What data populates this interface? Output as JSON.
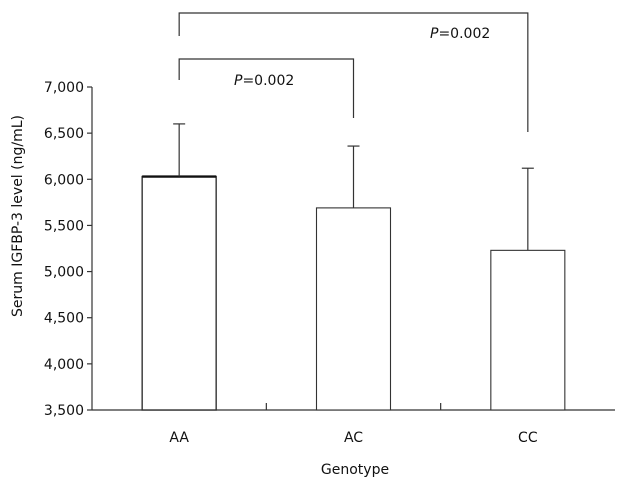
{
  "chart_data": {
    "type": "bar",
    "title": "",
    "xlabel": "Genotype",
    "ylabel": "Serum IGFBP-3 level (ng/mL)",
    "categories": [
      "AA",
      "AC",
      "CC"
    ],
    "values": [
      6030,
      5690,
      5230
    ],
    "error_upper": [
      6600,
      6360,
      6120
    ],
    "ylim": [
      3500,
      7000
    ],
    "yticks": [
      3500,
      4000,
      4500,
      5000,
      5500,
      6000,
      6500,
      7000
    ],
    "ytick_labels": [
      "3,500",
      "4,000",
      "4,500",
      "5,000",
      "5,500",
      "6,000",
      "6,500",
      "7,000"
    ],
    "grid": false,
    "annotations": [
      {
        "from": "AA",
        "to": "AC",
        "p_symbol": "P",
        "p_value": "=0.002"
      },
      {
        "from": "AA",
        "to": "CC",
        "p_symbol": "P",
        "p_value": "=0.002"
      }
    ],
    "colors": {
      "bar_fill": "#ffffff",
      "stroke": "#333333"
    }
  }
}
